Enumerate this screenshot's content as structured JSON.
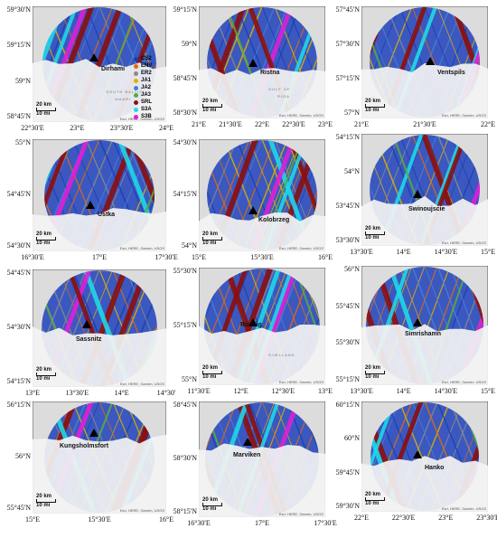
{
  "scale": {
    "km": "20 km",
    "mi": "10 mi"
  },
  "attribution": "Esri, HERE, Garmin, USGS",
  "legend": [
    {
      "code": "CS2",
      "color": "#1a3fb0"
    },
    {
      "code": "ENV",
      "color": "#e06a10"
    },
    {
      "code": "ER2",
      "color": "#8a8a8a"
    },
    {
      "code": "JA1",
      "color": "#e0b000"
    },
    {
      "code": "JA2",
      "color": "#4a7fd0"
    },
    {
      "code": "JA3",
      "color": "#5aaa40"
    },
    {
      "code": "SRL",
      "color": "#8a1010"
    },
    {
      "code": "S3A",
      "color": "#20d8e8"
    },
    {
      "code": "S3B",
      "color": "#e020d8"
    }
  ],
  "panels": [
    {
      "site": "Dirhami",
      "y": [
        "59°30'N",
        "59°15'N",
        "59°N",
        "58°45'N"
      ],
      "x": [
        "22°30'E",
        "23°E",
        "23°30'E",
        "24°E"
      ],
      "sea": [
        "SOUTH BALTIC",
        "MAARI"
      ]
    },
    {
      "site": "Ristna",
      "y": [
        "59°15'N",
        "59°N",
        "58°45'N",
        "58°30'N"
      ],
      "x": [
        "21°E",
        "21°30'E",
        "22°E",
        "22°30'E",
        "23°E"
      ],
      "sea": [
        "GULF OF",
        "RIGA"
      ]
    },
    {
      "site": "Ventspils",
      "y": [
        "57°45'N",
        "57°30'N",
        "57°15'N",
        "57°N"
      ],
      "x": [
        "21°E",
        "21°30'E",
        "22°E"
      ],
      "sea": []
    },
    {
      "site": "Ustka",
      "y": [
        "55°N",
        "54°45'N",
        "54°30'N"
      ],
      "x": [
        "16°30'E",
        "17°E",
        "17°30'E"
      ],
      "sea": []
    },
    {
      "site": "Kolobrzeg",
      "y": [
        "54°30'N",
        "54°15'N",
        "54°N"
      ],
      "x": [
        "15°E",
        "15°30'E",
        "16°E"
      ],
      "sea": []
    },
    {
      "site": "Swinoujscie",
      "y": [
        "54°15'N",
        "54°N",
        "53°45'N",
        "53°30'N"
      ],
      "x": [
        "13°30'E",
        "14°E",
        "14°30'E",
        "15°E"
      ],
      "sea": []
    },
    {
      "site": "Sassnitz",
      "y": [
        "54°45'N",
        "54°30'N",
        "54°15'N"
      ],
      "x": [
        "13°E",
        "13°30'E",
        "14°E",
        "14°30'"
      ],
      "sea": []
    },
    {
      "site": "Rodvig",
      "y": [
        "55°30'N",
        "55°15'N",
        "55°N"
      ],
      "x": [
        "11°30'E",
        "12°E",
        "12°30'E",
        "13°E"
      ],
      "sea": [
        "SJÆLLAND"
      ]
    },
    {
      "site": "Simrishamn",
      "y": [
        "56°N",
        "55°45'N",
        "55°30'N",
        "55°15'N"
      ],
      "x": [
        "13°30'E",
        "14°E",
        "14°30'E",
        "15°E"
      ],
      "sea": []
    },
    {
      "site": "Kungsholmsfort",
      "y": [
        "56°15'N",
        "56°N",
        "55°45'N"
      ],
      "x": [
        "15°E",
        "15°30'E",
        "16°E"
      ],
      "sea": []
    },
    {
      "site": "Marviken",
      "y": [
        "58°45'N",
        "58°30'N",
        "58°15'N"
      ],
      "x": [
        "16°30'E",
        "17°E",
        "17°30'E"
      ],
      "sea": []
    },
    {
      "site": "Hanko",
      "y": [
        "60°15'N",
        "60°N",
        "59°45'N",
        "59°30'N"
      ],
      "x": [
        "22°E",
        "22°30'E",
        "23°E",
        "23°30'E"
      ],
      "sea": []
    }
  ]
}
